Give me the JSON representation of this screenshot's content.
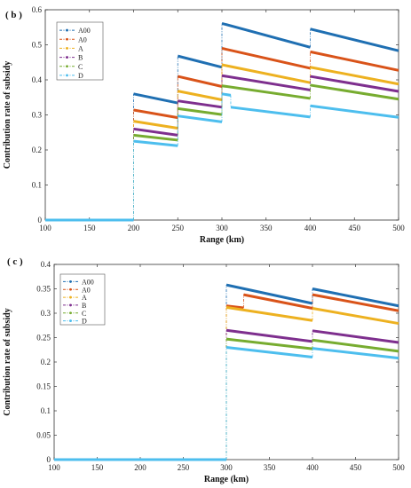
{
  "chart_data": [
    {
      "type": "line",
      "panel_label": "( b )",
      "xlabel": "Range (km)",
      "ylabel": "Contribution rate of subsidy",
      "xlim": [
        100,
        500
      ],
      "ylim": [
        0,
        0.6
      ],
      "xticks": [
        100,
        150,
        200,
        250,
        300,
        350,
        400,
        450,
        500
      ],
      "yticks": [
        0,
        0.1,
        0.2,
        0.3,
        0.4,
        0.5,
        0.6
      ],
      "ytick_labels": [
        "0",
        "0.1",
        "0.2",
        "0.3",
        "0.4",
        "0.5",
        "0.6"
      ],
      "grid": false,
      "legend_position": "top-left",
      "series": [
        {
          "name": "A00",
          "color": "#1f6fb2",
          "segments": [
            [
              [
                100,
                0
              ],
              [
                200,
                0
              ]
            ],
            [
              [
                200,
                0.36
              ],
              [
                250,
                0.334
              ]
            ],
            [
              [
                250,
                0.468
              ],
              [
                300,
                0.436
              ]
            ],
            [
              [
                300,
                0.561
              ],
              [
                400,
                0.493
              ]
            ],
            [
              [
                400,
                0.545
              ],
              [
                500,
                0.483
              ]
            ]
          ]
        },
        {
          "name": "A0",
          "color": "#d95319",
          "segments": [
            [
              [
                100,
                0
              ],
              [
                200,
                0
              ]
            ],
            [
              [
                200,
                0.314
              ],
              [
                250,
                0.292
              ]
            ],
            [
              [
                250,
                0.41
              ],
              [
                300,
                0.381
              ]
            ],
            [
              [
                300,
                0.49
              ],
              [
                400,
                0.433
              ]
            ],
            [
              [
                400,
                0.48
              ],
              [
                500,
                0.427
              ]
            ]
          ]
        },
        {
          "name": "A",
          "color": "#edb120",
          "segments": [
            [
              [
                100,
                0
              ],
              [
                200,
                0
              ]
            ],
            [
              [
                200,
                0.282
              ],
              [
                250,
                0.262
              ]
            ],
            [
              [
                250,
                0.368
              ],
              [
                300,
                0.343
              ]
            ],
            [
              [
                300,
                0.443
              ],
              [
                400,
                0.392
              ]
            ],
            [
              [
                400,
                0.436
              ],
              [
                500,
                0.388
              ]
            ]
          ]
        },
        {
          "name": "B",
          "color": "#7e2f8e",
          "segments": [
            [
              [
                100,
                0
              ],
              [
                200,
                0
              ]
            ],
            [
              [
                200,
                0.26
              ],
              [
                250,
                0.242
              ]
            ],
            [
              [
                250,
                0.34
              ],
              [
                300,
                0.322
              ]
            ],
            [
              [
                300,
                0.412
              ],
              [
                400,
                0.371
              ]
            ],
            [
              [
                400,
                0.41
              ],
              [
                500,
                0.367
              ]
            ]
          ]
        },
        {
          "name": "C",
          "color": "#77ac30",
          "segments": [
            [
              [
                100,
                0
              ],
              [
                200,
                0
              ]
            ],
            [
              [
                200,
                0.242
              ],
              [
                250,
                0.228
              ]
            ],
            [
              [
                250,
                0.318
              ],
              [
                300,
                0.301
              ]
            ],
            [
              [
                300,
                0.383
              ],
              [
                400,
                0.347
              ]
            ],
            [
              [
                400,
                0.385
              ],
              [
                500,
                0.345
              ]
            ]
          ]
        },
        {
          "name": "D",
          "color": "#4dbeee",
          "segments": [
            [
              [
                100,
                0
              ],
              [
                200,
                0
              ]
            ],
            [
              [
                200,
                0.225
              ],
              [
                250,
                0.212
              ]
            ],
            [
              [
                250,
                0.297
              ],
              [
                300,
                0.28
              ]
            ],
            [
              [
                300,
                0.36
              ],
              [
                310,
                0.356
              ]
            ],
            [
              [
                310,
                0.322
              ],
              [
                400,
                0.294
              ]
            ],
            [
              [
                400,
                0.326
              ],
              [
                500,
                0.293
              ]
            ]
          ]
        }
      ]
    },
    {
      "type": "line",
      "panel_label": "( c )",
      "xlabel": "Range (km)",
      "ylabel": "Contribution rate of subsidy",
      "xlim": [
        100,
        500
      ],
      "ylim": [
        0,
        0.4
      ],
      "xticks": [
        100,
        150,
        200,
        250,
        300,
        350,
        400,
        450,
        500
      ],
      "yticks": [
        0,
        0.05,
        0.1,
        0.15,
        0.2,
        0.25,
        0.3,
        0.35,
        0.4
      ],
      "ytick_labels": [
        "0",
        "0.05",
        "0.1",
        "0.15",
        "0.2",
        "0.25",
        "0.3",
        "0.35",
        "0.4"
      ],
      "grid": false,
      "legend_position": "top-left",
      "series": [
        {
          "name": "A00",
          "color": "#1f6fb2",
          "segments": [
            [
              [
                100,
                0
              ],
              [
                300,
                0
              ]
            ],
            [
              [
                300,
                0.358
              ],
              [
                400,
                0.32
              ]
            ],
            [
              [
                400,
                0.35
              ],
              [
                500,
                0.315
              ]
            ]
          ]
        },
        {
          "name": "A0",
          "color": "#d95319",
          "segments": [
            [
              [
                100,
                0
              ],
              [
                300,
                0
              ]
            ],
            [
              [
                300,
                0.315
              ],
              [
                320,
                0.311
              ]
            ],
            [
              [
                320,
                0.338
              ],
              [
                400,
                0.31
              ]
            ],
            [
              [
                400,
                0.338
              ],
              [
                500,
                0.305
              ]
            ]
          ]
        },
        {
          "name": "A",
          "color": "#edb120",
          "segments": [
            [
              [
                100,
                0
              ],
              [
                300,
                0
              ]
            ],
            [
              [
                300,
                0.312
              ],
              [
                400,
                0.285
              ]
            ],
            [
              [
                400,
                0.31
              ],
              [
                500,
                0.279
              ]
            ]
          ]
        },
        {
          "name": "B",
          "color": "#7e2f8e",
          "segments": [
            [
              [
                100,
                0
              ],
              [
                300,
                0
              ]
            ],
            [
              [
                300,
                0.265
              ],
              [
                400,
                0.242
              ]
            ],
            [
              [
                400,
                0.264
              ],
              [
                500,
                0.24
              ]
            ]
          ]
        },
        {
          "name": "C",
          "color": "#77ac30",
          "segments": [
            [
              [
                100,
                0
              ],
              [
                300,
                0
              ]
            ],
            [
              [
                300,
                0.247
              ],
              [
                400,
                0.227
              ]
            ],
            [
              [
                400,
                0.245
              ],
              [
                500,
                0.222
              ]
            ]
          ]
        },
        {
          "name": "D",
          "color": "#4dbeee",
          "segments": [
            [
              [
                100,
                0
              ],
              [
                300,
                0
              ]
            ],
            [
              [
                300,
                0.23
              ],
              [
                400,
                0.21
              ]
            ],
            [
              [
                400,
                0.228
              ],
              [
                500,
                0.208
              ]
            ]
          ]
        }
      ]
    }
  ]
}
